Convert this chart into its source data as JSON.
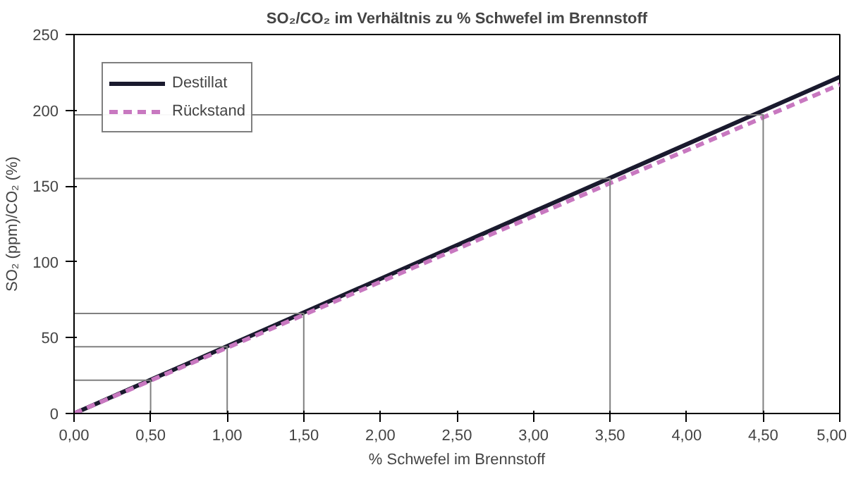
{
  "chart_data": {
    "type": "line",
    "title": "SO₂/CO₂ im Verhältnis zu % Schwefel im Brennstoff",
    "xlabel": "% Schwefel im Brennstoff",
    "ylabel": "SO₂ (ppm)/CO₂ (%)",
    "xlim": [
      0,
      5
    ],
    "ylim": [
      0,
      250
    ],
    "xticks": [
      {
        "value": 0,
        "label": "0,00"
      },
      {
        "value": 0.5,
        "label": "0,50"
      },
      {
        "value": 1,
        "label": "1,00"
      },
      {
        "value": 1.5,
        "label": "1,50"
      },
      {
        "value": 2,
        "label": "2,00"
      },
      {
        "value": 2.5,
        "label": "2,50"
      },
      {
        "value": 3,
        "label": "3,00"
      },
      {
        "value": 3.5,
        "label": "3,50"
      },
      {
        "value": 4,
        "label": "4,00"
      },
      {
        "value": 4.5,
        "label": "4,50"
      },
      {
        "value": 5,
        "label": "5,00"
      }
    ],
    "yticks": [
      0,
      50,
      100,
      150,
      200,
      250
    ],
    "grid": false,
    "legend": "top left",
    "series": [
      {
        "name": "Destillat",
        "color": "#1a1a2e",
        "x": [
          0,
          5
        ],
        "values": [
          0,
          222
        ],
        "line_style": "solid"
      },
      {
        "name": "Rückstand",
        "color": "#c878c0",
        "x": [
          0,
          5
        ],
        "values": [
          0,
          217
        ],
        "line_style": "dashed"
      },
      {
        "color": "#808080",
        "x": [
          0,
          0.5,
          0.5
        ],
        "values": [
          22,
          22,
          0
        ],
        "line_style": "solid"
      },
      {
        "color": "#808080",
        "x": [
          0,
          1,
          1
        ],
        "values": [
          44,
          44,
          0
        ],
        "line_style": "solid"
      },
      {
        "color": "#808080",
        "x": [
          0,
          1.5,
          1.5
        ],
        "values": [
          66,
          66,
          0
        ],
        "line_style": "solid"
      },
      {
        "color": "#808080",
        "x": [
          0,
          3.5,
          3.5
        ],
        "values": [
          155,
          155,
          0
        ],
        "line_style": "solid"
      },
      {
        "color": "#808080",
        "x": [
          0,
          4.5,
          4.5
        ],
        "values": [
          197,
          197,
          0
        ],
        "line_style": "solid"
      }
    ]
  }
}
